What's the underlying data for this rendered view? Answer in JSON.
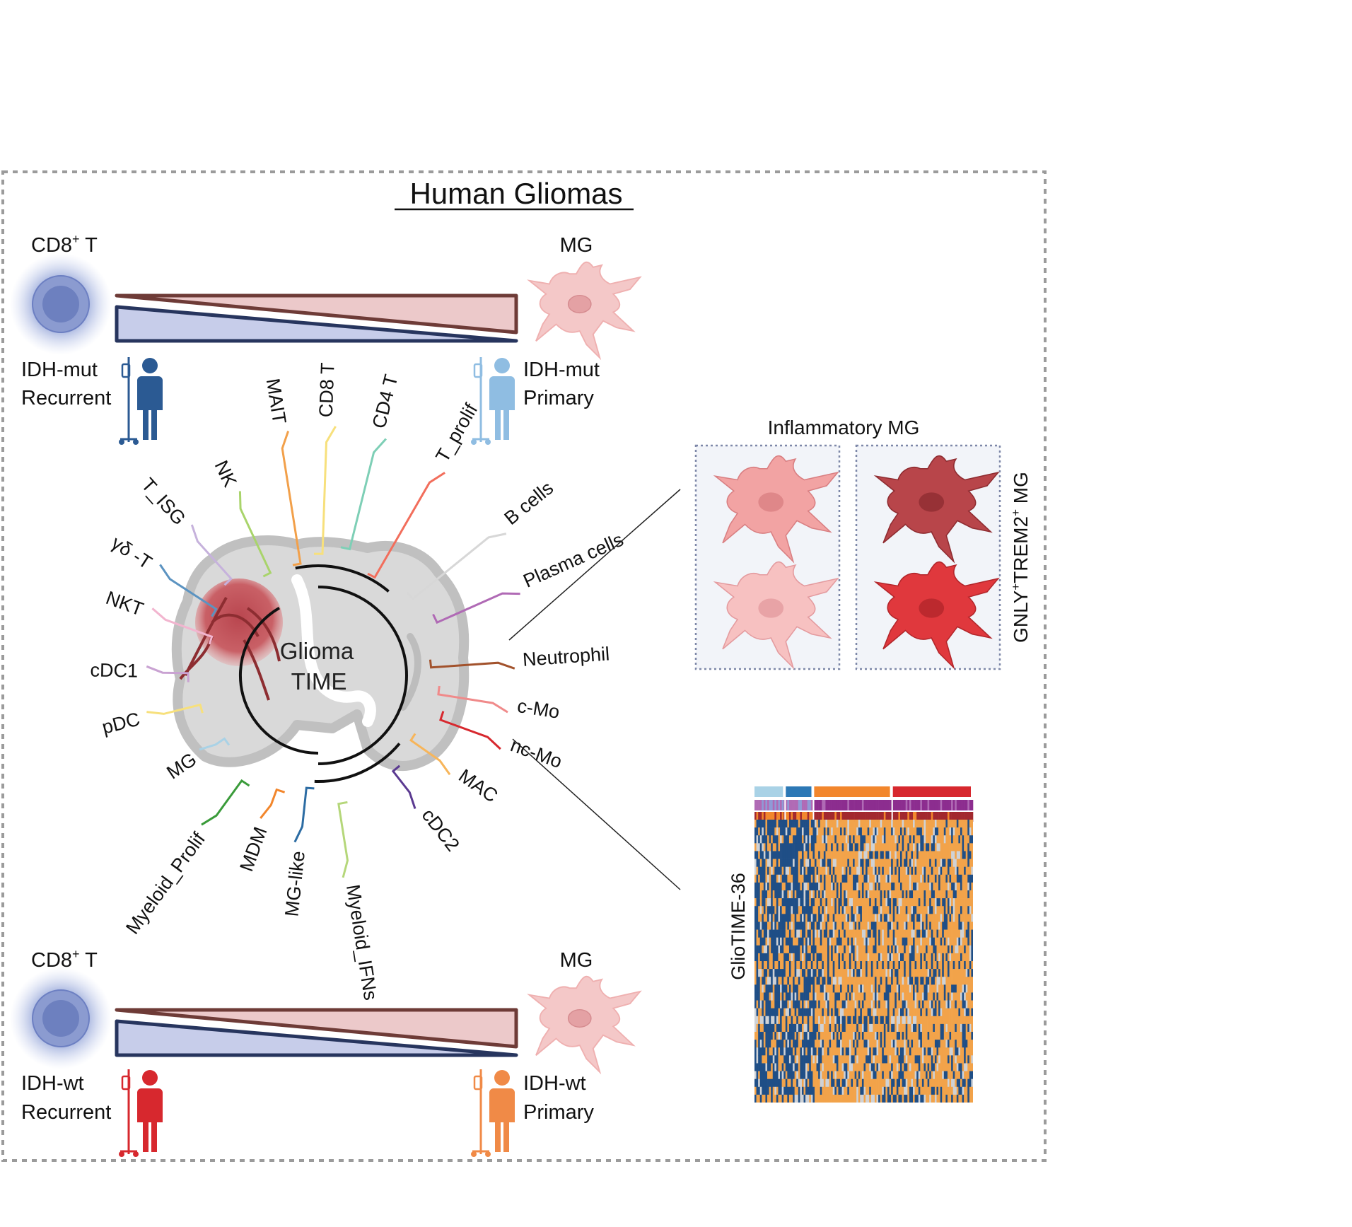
{
  "title": "Human Gliomas",
  "panels": {
    "top": {
      "left_cell": {
        "label_main": "CD8",
        "label_sup": "+",
        "label_tail": " T"
      },
      "right_cell": {
        "label": "MG"
      },
      "left_patient": {
        "line1": "IDH-mut",
        "line2": "Recurrent",
        "color": "#2b5a93"
      },
      "right_patient": {
        "line1": "IDH-mut",
        "line2": "Primary",
        "color": "#8fbde2"
      }
    },
    "bottom": {
      "left_cell": {
        "label_main": "CD8",
        "label_sup": "+",
        "label_tail": " T"
      },
      "right_cell": {
        "label": "MG"
      },
      "left_patient": {
        "line1": "IDH-wt",
        "line2": "Recurrent",
        "color": "#d7282e"
      },
      "right_patient": {
        "line1": "IDH-wt",
        "line2": "Primary",
        "color": "#f08a47"
      }
    }
  },
  "center": {
    "line1": "Glioma",
    "line2": "TIME"
  },
  "clusters": [
    {
      "label": "MAIT",
      "color": "#f2a04a"
    },
    {
      "label": "CD8 T",
      "color": "#f7e07c"
    },
    {
      "label": "CD4 T",
      "color": "#7ecfb6"
    },
    {
      "label": "T_prolif",
      "color": "#f26e5c"
    },
    {
      "label": "B cells",
      "color": "#d7d7d7"
    },
    {
      "label": "Plasma cells",
      "color": "#b06ab5"
    },
    {
      "label": "Neutrophil",
      "color": "#a2522c"
    },
    {
      "label": "c-Mo",
      "color": "#f08a8a"
    },
    {
      "label": "nc-Mo",
      "color": "#d7282e"
    },
    {
      "label": "MAC",
      "color": "#f7b55a"
    },
    {
      "label": "cDC2",
      "color": "#5b3a91"
    },
    {
      "label": "Myeloid_IFNs",
      "color": "#b5d77a"
    },
    {
      "label": "MG-like",
      "color": "#2c6ca3"
    },
    {
      "label": "MDM",
      "color": "#f2862c"
    },
    {
      "label": "Myeloid_Prolif",
      "color": "#3a9b3a"
    },
    {
      "label": "MG",
      "color": "#a9d2e6"
    },
    {
      "label": "pDC",
      "color": "#f7e07c"
    },
    {
      "label": "cDC1",
      "color": "#c9a2d2"
    },
    {
      "label": "NKT",
      "color": "#f2b5cf"
    },
    {
      "label": "γδ -T",
      "color": "#5b93c1"
    },
    {
      "label": "T_ISG",
      "color": "#c6b2dc"
    },
    {
      "label": "NK",
      "color": "#a9d46b"
    }
  ],
  "inflammatory": {
    "title": "Inflammatory MG",
    "side": "GNLY",
    "side_sup1": "+",
    "side_mid": "TREM2",
    "side_sup2": "+",
    "side_tail": " MG"
  },
  "heatmap": {
    "label": "GlioTIME-36",
    "group_colors": [
      "#a9d2e6",
      "#2c78b5",
      "#f2862c",
      "#d7282e"
    ],
    "group_fractions": [
      0.14,
      0.13,
      0.36,
      0.37
    ],
    "row2_colors": [
      "#b06ab5",
      "#8c2d8f"
    ],
    "row3_colors": [
      "#f2862c",
      "#a2282e"
    ],
    "value_colors": [
      "#1f4e86",
      "#f2a34a",
      "#cfd2d6"
    ],
    "value_scale": "blue-low, orange-high",
    "rows": 36,
    "columns": 120
  }
}
